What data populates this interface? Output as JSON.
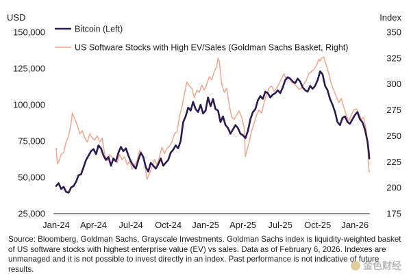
{
  "chart_data": {
    "type": "line",
    "left_axis_title": "USD",
    "right_axis_title": "Index",
    "x_tick_labels": [
      "Jan-24",
      "Apr-24",
      "Jul-24",
      "Oct-24",
      "Jan-25",
      "Apr-25",
      "Jul-25",
      "Oct-25",
      "Jan-26"
    ],
    "x_tick_months": [
      0,
      3,
      6,
      9,
      12,
      15,
      18,
      21,
      24
    ],
    "x_range_months": [
      0,
      25.2
    ],
    "left_ticks": [
      25000,
      50000,
      75000,
      100000,
      125000,
      150000
    ],
    "left_tick_labels": [
      "25,000",
      "50,000",
      "75,000",
      "100,000",
      "125,000",
      "150,000"
    ],
    "ylim_left": [
      25000,
      150000
    ],
    "right_ticks": [
      175,
      200,
      225,
      250,
      275,
      300,
      325,
      350
    ],
    "right_tick_labels": [
      "175",
      "200",
      "225",
      "250",
      "275",
      "300",
      "325",
      "350"
    ],
    "ylim_right": [
      175,
      350
    ],
    "series": [
      {
        "name": "Bitcoin (Left)",
        "axis": "left",
        "color": "#2b1a4f",
        "points": [
          [
            0,
            44000
          ],
          [
            0.2,
            46000
          ],
          [
            0.4,
            42000
          ],
          [
            0.6,
            43500
          ],
          [
            0.8,
            40000
          ],
          [
            1.0,
            39500
          ],
          [
            1.2,
            43000
          ],
          [
            1.4,
            44000
          ],
          [
            1.6,
            47000
          ],
          [
            1.8,
            51500
          ],
          [
            2.0,
            52000
          ],
          [
            2.2,
            57000
          ],
          [
            2.4,
            62000
          ],
          [
            2.6,
            65000
          ],
          [
            2.8,
            68000
          ],
          [
            3.0,
            69500
          ],
          [
            3.2,
            66000
          ],
          [
            3.4,
            72000
          ],
          [
            3.6,
            70000
          ],
          [
            3.8,
            65000
          ],
          [
            4.0,
            62000
          ],
          [
            4.2,
            64000
          ],
          [
            4.4,
            58000
          ],
          [
            4.6,
            63000
          ],
          [
            4.8,
            61000
          ],
          [
            5.0,
            67000
          ],
          [
            5.2,
            71000
          ],
          [
            5.4,
            68000
          ],
          [
            5.6,
            70000
          ],
          [
            5.8,
            65000
          ],
          [
            6.0,
            61000
          ],
          [
            6.2,
            58000
          ],
          [
            6.4,
            56000
          ],
          [
            6.6,
            62000
          ],
          [
            6.8,
            67000
          ],
          [
            7.0,
            64000
          ],
          [
            7.2,
            57000
          ],
          [
            7.4,
            54000
          ],
          [
            7.6,
            60000
          ],
          [
            7.8,
            58000
          ],
          [
            8.0,
            56000
          ],
          [
            8.2,
            59000
          ],
          [
            8.4,
            63000
          ],
          [
            8.6,
            58000
          ],
          [
            8.8,
            60000
          ],
          [
            9.0,
            62000
          ],
          [
            9.2,
            67000
          ],
          [
            9.4,
            69000
          ],
          [
            9.6,
            72000
          ],
          [
            9.8,
            70000
          ],
          [
            10.0,
            75000
          ],
          [
            10.2,
            88000
          ],
          [
            10.4,
            92000
          ],
          [
            10.6,
            98000
          ],
          [
            10.8,
            96000
          ],
          [
            11.0,
            102000
          ],
          [
            11.2,
            97000
          ],
          [
            11.4,
            95000
          ],
          [
            11.6,
            100000
          ],
          [
            11.8,
            94000
          ],
          [
            12.0,
            96000
          ],
          [
            12.2,
            105000
          ],
          [
            12.4,
            99000
          ],
          [
            12.6,
            104000
          ],
          [
            12.8,
            97000
          ],
          [
            13.0,
            96000
          ],
          [
            13.2,
            88000
          ],
          [
            13.4,
            92000
          ],
          [
            13.6,
            86000
          ],
          [
            13.8,
            84000
          ],
          [
            14.0,
            80000
          ],
          [
            14.2,
            83000
          ],
          [
            14.4,
            86000
          ],
          [
            14.6,
            84000
          ],
          [
            14.8,
            80000
          ],
          [
            15.0,
            79000
          ],
          [
            15.2,
            77000
          ],
          [
            15.4,
            82000
          ],
          [
            15.6,
            90000
          ],
          [
            15.8,
            95000
          ],
          [
            16.0,
            97000
          ],
          [
            16.2,
            103000
          ],
          [
            16.4,
            106000
          ],
          [
            16.6,
            104000
          ],
          [
            16.8,
            109000
          ],
          [
            17.0,
            108000
          ],
          [
            17.2,
            105000
          ],
          [
            17.4,
            107000
          ],
          [
            17.6,
            108000
          ],
          [
            17.8,
            110000
          ],
          [
            18.0,
            108000
          ],
          [
            18.2,
            112000
          ],
          [
            18.4,
            117000
          ],
          [
            18.6,
            119000
          ],
          [
            18.8,
            118000
          ],
          [
            19.0,
            116000
          ],
          [
            19.2,
            115000
          ],
          [
            19.4,
            118000
          ],
          [
            19.6,
            116000
          ],
          [
            19.8,
            112000
          ],
          [
            20.0,
            110000
          ],
          [
            20.2,
            109000
          ],
          [
            20.4,
            113000
          ],
          [
            20.6,
            111000
          ],
          [
            20.8,
            113000
          ],
          [
            21.0,
            117000
          ],
          [
            21.2,
            123000
          ],
          [
            21.4,
            121000
          ],
          [
            21.6,
            113000
          ],
          [
            21.8,
            110000
          ],
          [
            22.0,
            104000
          ],
          [
            22.2,
            100000
          ],
          [
            22.4,
            95000
          ],
          [
            22.6,
            88000
          ],
          [
            22.8,
            86000
          ],
          [
            23.0,
            91000
          ],
          [
            23.2,
            92000
          ],
          [
            23.4,
            88000
          ],
          [
            23.6,
            87000
          ],
          [
            23.8,
            90000
          ],
          [
            24.0,
            93000
          ],
          [
            24.2,
            95000
          ],
          [
            24.4,
            90000
          ],
          [
            24.6,
            88000
          ],
          [
            24.8,
            83000
          ],
          [
            25.0,
            75000
          ],
          [
            25.1,
            68000
          ],
          [
            25.15,
            63000
          ]
        ]
      },
      {
        "name": "US Software Stocks with High EV/Sales (Goldman Sachs Basket, Right)",
        "axis": "right",
        "color": "#f2a58a",
        "points": [
          [
            0,
            238
          ],
          [
            0.1,
            223
          ],
          [
            0.2,
            225
          ],
          [
            0.4,
            232
          ],
          [
            0.6,
            234
          ],
          [
            0.8,
            244
          ],
          [
            1.0,
            250
          ],
          [
            1.2,
            262
          ],
          [
            1.3,
            272
          ],
          [
            1.5,
            266
          ],
          [
            1.7,
            260
          ],
          [
            1.9,
            252
          ],
          [
            2.1,
            255
          ],
          [
            2.3,
            248
          ],
          [
            2.5,
            244
          ],
          [
            2.7,
            252
          ],
          [
            2.9,
            248
          ],
          [
            3.1,
            246
          ],
          [
            3.3,
            250
          ],
          [
            3.5,
            244
          ],
          [
            3.7,
            248
          ],
          [
            3.9,
            232
          ],
          [
            4.1,
            226
          ],
          [
            4.3,
            232
          ],
          [
            4.5,
            229
          ],
          [
            4.7,
            226
          ],
          [
            4.9,
            224
          ],
          [
            5.1,
            232
          ],
          [
            5.3,
            227
          ],
          [
            5.5,
            230
          ],
          [
            5.7,
            222
          ],
          [
            5.9,
            226
          ],
          [
            6.1,
            218
          ],
          [
            6.3,
            222
          ],
          [
            6.5,
            226
          ],
          [
            6.7,
            236
          ],
          [
            6.9,
            232
          ],
          [
            7.1,
            224
          ],
          [
            7.3,
            208
          ],
          [
            7.5,
            214
          ],
          [
            7.7,
            220
          ],
          [
            7.9,
            227
          ],
          [
            8.1,
            222
          ],
          [
            8.3,
            230
          ],
          [
            8.5,
            239
          ],
          [
            8.7,
            233
          ],
          [
            8.9,
            238
          ],
          [
            9.1,
            240
          ],
          [
            9.3,
            244
          ],
          [
            9.5,
            252
          ],
          [
            9.7,
            254
          ],
          [
            9.9,
            268
          ],
          [
            10.1,
            278
          ],
          [
            10.3,
            290
          ],
          [
            10.5,
            302
          ],
          [
            10.7,
            298
          ],
          [
            10.9,
            296
          ],
          [
            11.1,
            287
          ],
          [
            11.3,
            294
          ],
          [
            11.5,
            292
          ],
          [
            11.7,
            299
          ],
          [
            11.9,
            294
          ],
          [
            12.1,
            300
          ],
          [
            12.3,
            307
          ],
          [
            12.5,
            304
          ],
          [
            12.7,
            312
          ],
          [
            12.9,
            317
          ],
          [
            13.0,
            325
          ],
          [
            13.1,
            322
          ],
          [
            13.3,
            300
          ],
          [
            13.5,
            292
          ],
          [
            13.7,
            296
          ],
          [
            13.9,
            280
          ],
          [
            14.1,
            268
          ],
          [
            14.3,
            266
          ],
          [
            14.5,
            270
          ],
          [
            14.7,
            274
          ],
          [
            14.9,
            268
          ],
          [
            15.1,
            258
          ],
          [
            15.2,
            230
          ],
          [
            15.3,
            235
          ],
          [
            15.5,
            244
          ],
          [
            15.7,
            255
          ],
          [
            15.9,
            262
          ],
          [
            16.1,
            270
          ],
          [
            16.3,
            275
          ],
          [
            16.5,
            272
          ],
          [
            16.7,
            282
          ],
          [
            16.9,
            290
          ],
          [
            17.1,
            296
          ],
          [
            17.3,
            298
          ],
          [
            17.5,
            293
          ],
          [
            17.7,
            296
          ],
          [
            17.9,
            300
          ],
          [
            18.1,
            305
          ],
          [
            18.3,
            310
          ],
          [
            18.5,
            304
          ],
          [
            18.7,
            306
          ],
          [
            18.9,
            302
          ],
          [
            19.1,
            300
          ],
          [
            19.3,
            298
          ],
          [
            19.5,
            295
          ],
          [
            19.7,
            296
          ],
          [
            19.9,
            300
          ],
          [
            20.1,
            304
          ],
          [
            20.3,
            310
          ],
          [
            20.5,
            312
          ],
          [
            20.7,
            314
          ],
          [
            20.9,
            318
          ],
          [
            21.1,
            324
          ],
          [
            21.2,
            322
          ],
          [
            21.3,
            325
          ],
          [
            21.5,
            326
          ],
          [
            21.7,
            318
          ],
          [
            21.9,
            310
          ],
          [
            22.1,
            300
          ],
          [
            22.3,
            294
          ],
          [
            22.5,
            288
          ],
          [
            22.7,
            282
          ],
          [
            22.9,
            286
          ],
          [
            23.1,
            278
          ],
          [
            23.3,
            270
          ],
          [
            23.5,
            264
          ],
          [
            23.7,
            270
          ],
          [
            23.9,
            275
          ],
          [
            24.1,
            276
          ],
          [
            24.3,
            272
          ],
          [
            24.5,
            266
          ],
          [
            24.7,
            268
          ],
          [
            24.9,
            256
          ],
          [
            25.0,
            246
          ],
          [
            25.1,
            220
          ],
          [
            25.15,
            215
          ]
        ]
      }
    ],
    "legend": [
      {
        "label": "Bitcoin (Left)",
        "color": "#2b1a4f"
      },
      {
        "label": "US Software Stocks with High EV/Sales (Goldman Sachs Basket, Right)",
        "color": "#f2a58a"
      }
    ],
    "legend_position": "top-left",
    "grid": false
  },
  "source_note": "Source: Bloomberg, Goldman Sachs, Grayscale Investments. Goldman Sachs index is liquidity-weighted basket of US software stocks with highest enterprise value (EV) vs sales. Data as of February 6, 2026. Indexes are unmanaged and it is not possible to invest directly in an index. Past performance is not indicative of future results.",
  "watermark": "金色财经"
}
